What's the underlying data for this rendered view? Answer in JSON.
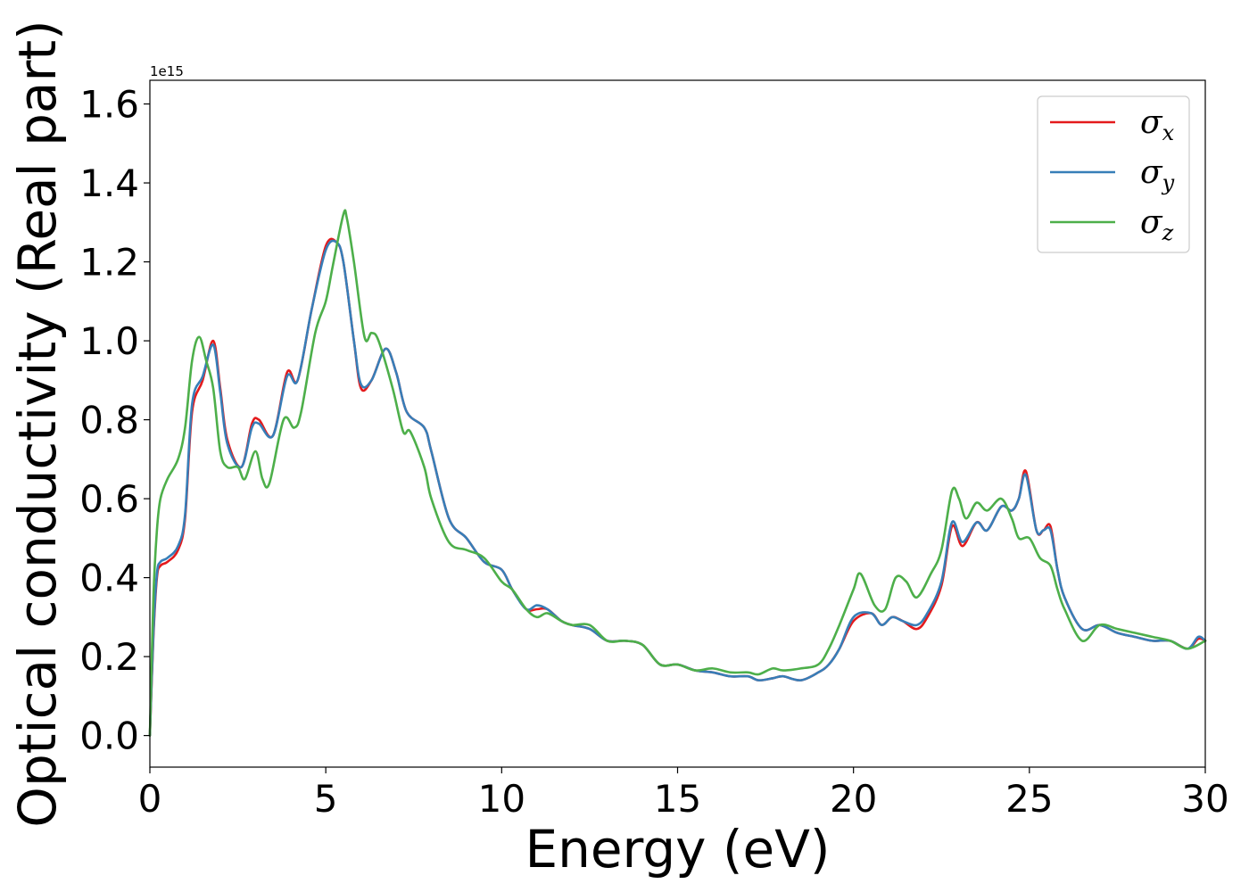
{
  "chart_data": {
    "type": "line",
    "title": "",
    "xlabel": "Energy (eV)",
    "ylabel": "Optical conductivity (Real part)",
    "y_offset_label": "1e15",
    "xlim": [
      0,
      30
    ],
    "ylim": [
      -0.08,
      1.66
    ],
    "xticks": [
      0,
      5,
      10,
      15,
      20,
      25,
      30
    ],
    "xtick_labels": [
      "0",
      "5",
      "10",
      "15",
      "20",
      "25",
      "30"
    ],
    "yticks": [
      0.0,
      0.2,
      0.4,
      0.6,
      0.8,
      1.0,
      1.2,
      1.4,
      1.6
    ],
    "ytick_labels": [
      "0.0",
      "0.2",
      "0.4",
      "0.6",
      "0.8",
      "1.0",
      "1.2",
      "1.4",
      "1.6"
    ],
    "grid": false,
    "legend_position": "top-right",
    "series": [
      {
        "name": "σx",
        "legend_base": "σ",
        "legend_sub": "x",
        "color": "#e41a1c",
        "x": [
          0.0,
          0.1,
          0.2,
          0.3,
          0.5,
          0.8,
          1.0,
          1.2,
          1.5,
          1.8,
          2.0,
          2.2,
          2.6,
          2.9,
          3.1,
          3.5,
          3.9,
          4.2,
          4.6,
          5.0,
          5.3,
          5.5,
          5.8,
          6.0,
          6.3,
          6.7,
          7.0,
          7.3,
          7.8,
          8.0,
          8.5,
          9.0,
          9.5,
          10.0,
          10.3,
          10.7,
          11.0,
          11.3,
          11.7,
          12.0,
          12.5,
          13.0,
          13.5,
          14.0,
          14.5,
          15.0,
          15.5,
          16.0,
          16.5,
          17.0,
          17.3,
          17.7,
          18.0,
          18.5,
          19.0,
          19.3,
          19.6,
          20.0,
          20.5,
          20.8,
          21.1,
          21.4,
          21.8,
          22.1,
          22.5,
          22.8,
          23.1,
          23.5,
          23.8,
          24.2,
          24.5,
          24.7,
          24.9,
          25.2,
          25.4,
          25.6,
          25.8,
          26.0,
          26.5,
          27.0,
          27.5,
          28.0,
          28.5,
          29.0,
          29.5,
          29.8,
          30.0
        ],
        "y": [
          0.0,
          0.25,
          0.4,
          0.43,
          0.44,
          0.47,
          0.55,
          0.82,
          0.9,
          1.0,
          0.88,
          0.75,
          0.68,
          0.79,
          0.8,
          0.76,
          0.92,
          0.9,
          1.08,
          1.24,
          1.25,
          1.2,
          1.0,
          0.88,
          0.9,
          0.98,
          0.92,
          0.82,
          0.78,
          0.72,
          0.55,
          0.5,
          0.44,
          0.42,
          0.37,
          0.32,
          0.32,
          0.32,
          0.29,
          0.28,
          0.27,
          0.24,
          0.24,
          0.23,
          0.18,
          0.18,
          0.165,
          0.16,
          0.15,
          0.15,
          0.14,
          0.145,
          0.15,
          0.14,
          0.16,
          0.18,
          0.22,
          0.29,
          0.31,
          0.28,
          0.3,
          0.29,
          0.27,
          0.3,
          0.38,
          0.53,
          0.48,
          0.54,
          0.52,
          0.58,
          0.57,
          0.6,
          0.67,
          0.52,
          0.52,
          0.53,
          0.42,
          0.35,
          0.27,
          0.28,
          0.26,
          0.25,
          0.24,
          0.24,
          0.22,
          0.245,
          0.24
        ]
      },
      {
        "name": "σy",
        "legend_base": "σ",
        "legend_sub": "y",
        "color": "#377eb8",
        "x": [
          0.0,
          0.1,
          0.2,
          0.3,
          0.5,
          0.8,
          1.0,
          1.2,
          1.5,
          1.8,
          2.0,
          2.2,
          2.6,
          2.9,
          3.1,
          3.5,
          3.9,
          4.2,
          4.6,
          5.0,
          5.3,
          5.5,
          5.8,
          6.0,
          6.3,
          6.7,
          7.0,
          7.3,
          7.8,
          8.0,
          8.5,
          9.0,
          9.5,
          10.0,
          10.3,
          10.7,
          11.0,
          11.3,
          11.7,
          12.0,
          12.5,
          13.0,
          13.5,
          14.0,
          14.5,
          15.0,
          15.5,
          16.0,
          16.5,
          17.0,
          17.3,
          17.7,
          18.0,
          18.5,
          19.0,
          19.3,
          19.6,
          20.0,
          20.5,
          20.8,
          21.1,
          21.4,
          21.8,
          22.1,
          22.5,
          22.8,
          23.1,
          23.5,
          23.8,
          24.2,
          24.5,
          24.7,
          24.9,
          25.2,
          25.4,
          25.6,
          25.8,
          26.0,
          26.5,
          27.0,
          27.5,
          28.0,
          28.5,
          29.0,
          29.5,
          29.8,
          30.0
        ],
        "y": [
          0.0,
          0.26,
          0.41,
          0.44,
          0.45,
          0.48,
          0.56,
          0.84,
          0.91,
          0.99,
          0.87,
          0.74,
          0.68,
          0.78,
          0.79,
          0.76,
          0.91,
          0.9,
          1.08,
          1.23,
          1.25,
          1.2,
          1.0,
          0.89,
          0.9,
          0.98,
          0.92,
          0.82,
          0.78,
          0.72,
          0.55,
          0.5,
          0.44,
          0.42,
          0.37,
          0.32,
          0.33,
          0.32,
          0.29,
          0.28,
          0.27,
          0.24,
          0.24,
          0.23,
          0.18,
          0.18,
          0.165,
          0.16,
          0.15,
          0.15,
          0.14,
          0.145,
          0.15,
          0.14,
          0.16,
          0.18,
          0.22,
          0.3,
          0.31,
          0.28,
          0.3,
          0.29,
          0.28,
          0.31,
          0.39,
          0.54,
          0.49,
          0.54,
          0.52,
          0.58,
          0.57,
          0.6,
          0.66,
          0.52,
          0.52,
          0.52,
          0.42,
          0.35,
          0.27,
          0.28,
          0.26,
          0.25,
          0.24,
          0.24,
          0.22,
          0.25,
          0.24
        ]
      },
      {
        "name": "σz",
        "legend_base": "σ",
        "legend_sub": "z",
        "color": "#4daf4a",
        "x": [
          0.0,
          0.1,
          0.2,
          0.3,
          0.5,
          0.8,
          1.0,
          1.2,
          1.4,
          1.6,
          1.8,
          2.0,
          2.2,
          2.5,
          2.7,
          3.0,
          3.2,
          3.4,
          3.8,
          4.1,
          4.3,
          4.7,
          5.0,
          5.2,
          5.5,
          5.6,
          5.8,
          6.1,
          6.3,
          6.5,
          6.9,
          7.2,
          7.4,
          7.8,
          8.0,
          8.5,
          9.0,
          9.5,
          10.0,
          10.3,
          10.7,
          11.0,
          11.3,
          11.7,
          12.0,
          12.5,
          13.0,
          13.5,
          14.0,
          14.5,
          15.0,
          15.5,
          16.0,
          16.5,
          17.0,
          17.3,
          17.7,
          18.0,
          18.5,
          19.0,
          19.3,
          19.6,
          20.0,
          20.2,
          20.6,
          20.9,
          21.2,
          21.5,
          21.8,
          22.2,
          22.5,
          22.8,
          23.0,
          23.2,
          23.5,
          23.8,
          24.2,
          24.5,
          24.7,
          25.0,
          25.3,
          25.6,
          25.8,
          26.0,
          26.5,
          27.0,
          27.5,
          28.0,
          28.5,
          29.0,
          29.5,
          30.0
        ],
        "y": [
          0.0,
          0.35,
          0.52,
          0.6,
          0.65,
          0.7,
          0.78,
          0.95,
          1.01,
          0.95,
          0.88,
          0.72,
          0.68,
          0.68,
          0.65,
          0.72,
          0.65,
          0.64,
          0.8,
          0.78,
          0.82,
          1.02,
          1.1,
          1.19,
          1.32,
          1.31,
          1.2,
          1.01,
          1.02,
          1.0,
          0.88,
          0.77,
          0.77,
          0.68,
          0.6,
          0.49,
          0.47,
          0.45,
          0.39,
          0.37,
          0.32,
          0.3,
          0.31,
          0.29,
          0.28,
          0.28,
          0.24,
          0.24,
          0.23,
          0.18,
          0.18,
          0.165,
          0.17,
          0.16,
          0.16,
          0.155,
          0.17,
          0.165,
          0.17,
          0.18,
          0.22,
          0.28,
          0.37,
          0.41,
          0.33,
          0.32,
          0.4,
          0.39,
          0.35,
          0.41,
          0.47,
          0.62,
          0.6,
          0.55,
          0.59,
          0.57,
          0.6,
          0.55,
          0.5,
          0.5,
          0.45,
          0.43,
          0.37,
          0.32,
          0.24,
          0.28,
          0.27,
          0.26,
          0.25,
          0.24,
          0.22,
          0.24
        ]
      }
    ]
  }
}
